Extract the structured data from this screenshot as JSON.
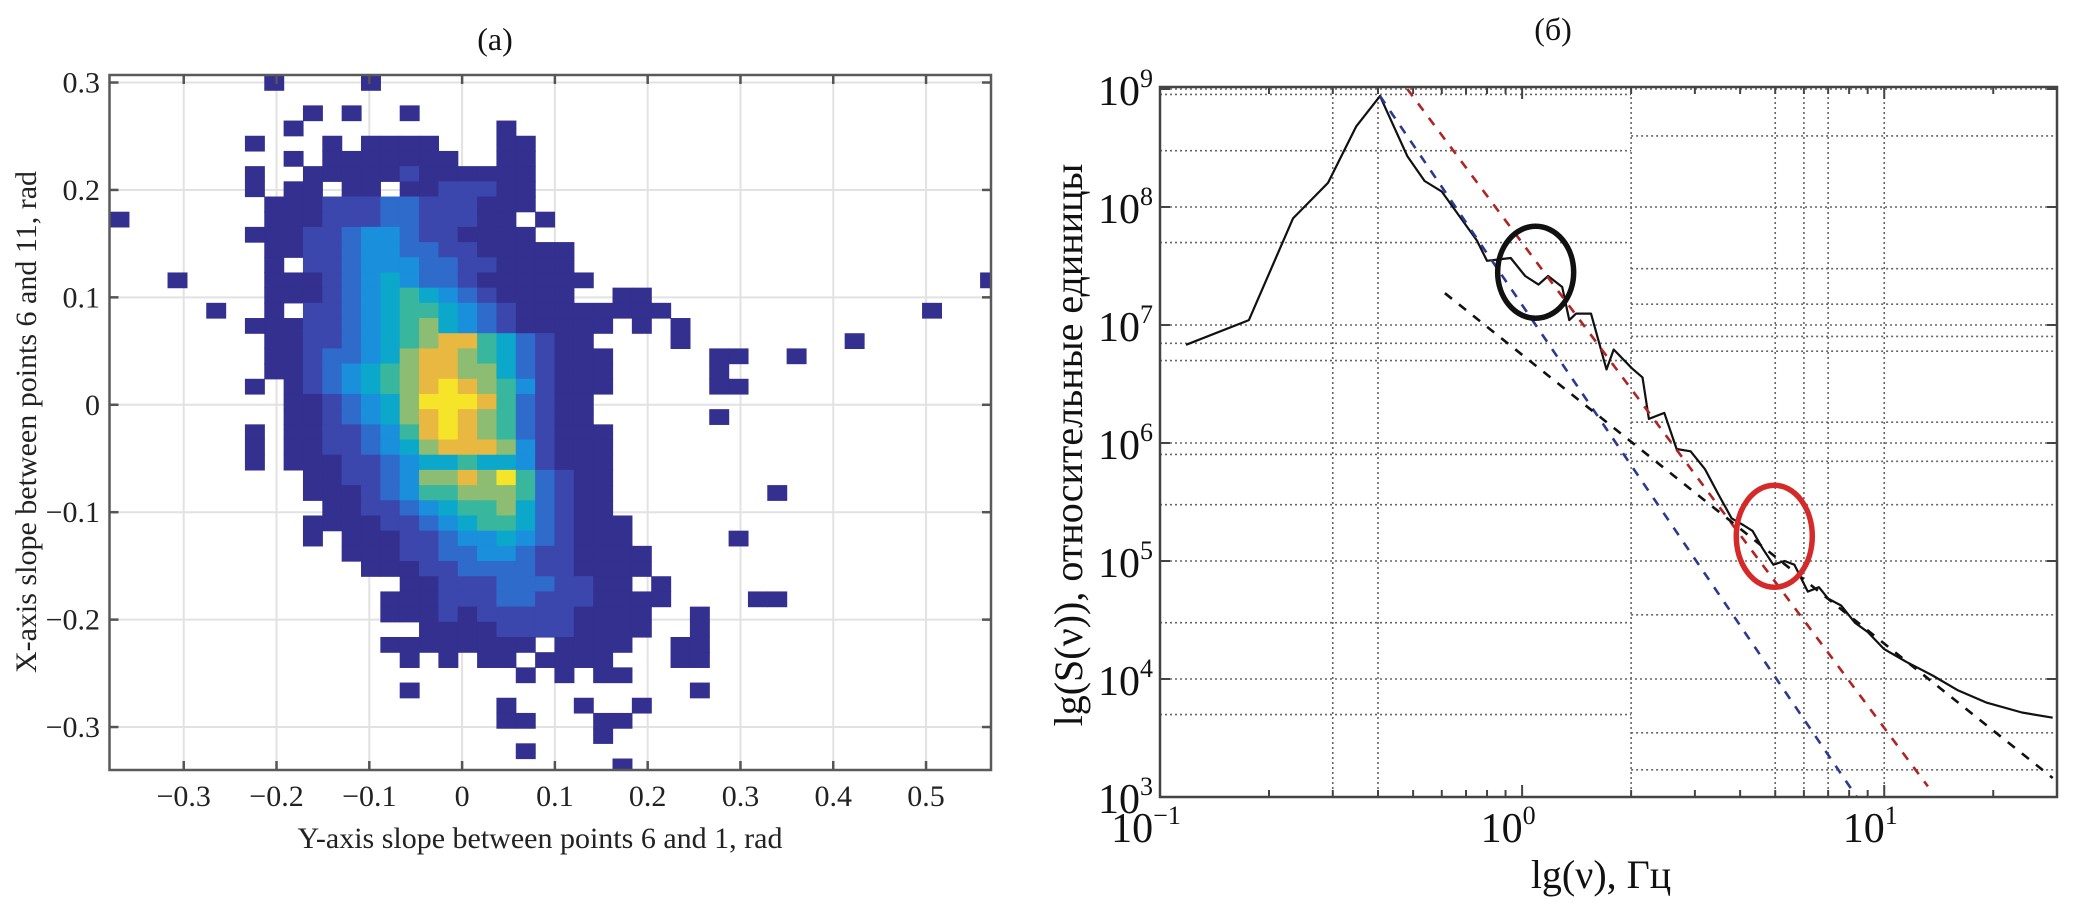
{
  "chart_data": [
    {
      "type": "heatmap",
      "panel_label": "(a)",
      "xlabel": "Y-axis slope between points 6 and 1, rad",
      "ylabel": "X-axis slope between points 6 and 11,  rad",
      "xlim": [
        -0.38,
        0.57
      ],
      "ylim": [
        -0.34,
        0.307
      ],
      "x_ticks": [
        -0.3,
        -0.2,
        -0.1,
        0,
        0.1,
        0.2,
        0.3,
        0.4,
        0.5
      ],
      "x_tick_labels": [
        "−0.3",
        "−0.2",
        "−0.1",
        "0",
        "0.1",
        "0.2",
        "0.3",
        "0.4",
        "0.5"
      ],
      "y_ticks": [
        0.3,
        0.2,
        0.1,
        0,
        -0.1,
        -0.2,
        -0.3
      ],
      "y_tick_labels": [
        "0.3",
        "0.2",
        "0.1",
        "0",
        "−0.1",
        "−0.2",
        "−0.3"
      ],
      "grid": true,
      "bins": {
        "x_start": -0.38,
        "x_width": 0.02085,
        "y_start": 0.307,
        "y_height": 0.01414
      },
      "colormap": [
        "#ffffff",
        "#33308f",
        "#3b47ad",
        "#2e6bca",
        "#1a8fdc",
        "#0ca8cc",
        "#38b79e",
        "#8cbd72",
        "#e8b840",
        "#f6e428"
      ],
      "density_levels_rows": [
        "00000000100001",
        "",
        "0000000000101001",
        "000000000100000000001",
        "0000000100010111100011",
        "0000000001011111110011",
        "0000000100111112111111",
        "0000000101101101122211",
        "0000000011122233222111",
        "10000000111222332221101",
        "0000000111223443221111",
        "000000001122344332211111",
        "000000001022344433221111",
        "0001000011123454332111111000000000000000000001",
        "0000000011123456543211110011",
        "0000010010223456654321111111100000000000001",
        "000000011122345675432111110101",
        "000000001122345678865321100001000000001",
        "0000000011233457887653211100000110 1",
        "00000000112345678877532111000001",
        "000000010123456789876421110000011",
        "0000000001123457999863211",
        "00000000011234578987632110000001",
        "00000001011223468987632111",
        "00000001011223457888742111",
        "00000001011122345565542111",
        "00000000001122347787963211",
        "00000000001112346677763211000000001",
        "00000000000112234566753211",
        "000000000011112234566532111",
        "000000000010111223445432111000001",
        "0000000000001112233443221111",
        "0000000000000111223333221111",
        "00000000000000011222333221101",
        "00000000000000111222332221111000011",
        "0000000000000011121222221111 01",
        "0000000000000000111122221111001",
        "0000000000000011111111011110011",
        "0000000000000001010110111100011",
        "000000000000000000000101011",
        "00000000000000010000000000000 1",
        "00000000000000000000100010 1",
        "000000000000000000001100 11",
        "00000000000000000000000001",
        "0000000000000000000001",
        "000000000000000000000000001"
      ]
    },
    {
      "type": "line",
      "panel_label": "(б)",
      "xlabel": "lg(ν), Гц",
      "ylabel": "lg(S(ν)), относительные единицы",
      "x_scale": "log",
      "y_scale": "log",
      "xlim": [
        0.1,
        30
      ],
      "ylim": [
        1000,
        1000000000
      ],
      "x_tick_labels": [
        {
          "base": "10",
          "exp": "−1",
          "value": 0.1
        },
        {
          "base": "10",
          "exp": "0",
          "value": 1
        },
        {
          "base": "10",
          "exp": "1",
          "value": 10
        }
      ],
      "y_tick_labels": [
        {
          "base": "10",
          "exp": "3",
          "value": 1000
        },
        {
          "base": "10",
          "exp": "4",
          "value": 10000
        },
        {
          "base": "10",
          "exp": "5",
          "value": 100000
        },
        {
          "base": "10",
          "exp": "6",
          "value": 1000000
        },
        {
          "base": "10",
          "exp": "7",
          "value": 10000000
        },
        {
          "base": "10",
          "exp": "8",
          "value": 100000000
        },
        {
          "base": "10",
          "exp": "9",
          "value": 1000000000
        }
      ],
      "grid": true,
      "grid_x_values": [
        0.3,
        0.4,
        2,
        5,
        6,
        7,
        10
      ],
      "grid_y_left_values": [
        900000000,
        300000000,
        50000000,
        7000000,
        5000000,
        800000,
        300000,
        30000,
        5000
      ],
      "grid_y_right_values": [
        400000000,
        30000000,
        15000000,
        8000000,
        6000000,
        1500000,
        700000,
        300000,
        35000,
        3500,
        1700
      ],
      "series": [
        {
          "style": "solid",
          "color": "#111111",
          "x": [
            0.118,
            0.176,
            0.233,
            0.291,
            0.348,
            0.405,
            0.482,
            0.538,
            0.6,
            0.75,
            0.8,
            0.93,
            1.02,
            1.11,
            1.18,
            1.29,
            1.35,
            1.41,
            1.55,
            1.71,
            1.79,
            2.01,
            2.15,
            2.24,
            2.47,
            2.67,
            2.92,
            3.2,
            3.48,
            3.79,
            4.1,
            4.33,
            4.6,
            4.94,
            5.3,
            5.65,
            6.15,
            6.6,
            7.0,
            7.6,
            8.3,
            9.0,
            9.98,
            11.5,
            13.6,
            16,
            19.2,
            24,
            29.2
          ],
          "y": [
            6800000,
            11000000,
            80000000,
            160000000,
            480000000,
            870000000,
            270000000,
            166000000,
            135000000,
            52000000,
            35000000,
            37000000,
            26000000,
            22000000,
            26000000,
            21000000,
            11000000,
            12500000,
            12500000,
            4200000,
            6200000,
            4300000,
            3600000,
            1600000,
            1800000,
            890000,
            850000,
            600000,
            370000,
            230000,
            200000,
            180000,
            130000,
            93000,
            100000,
            93000,
            55000,
            60000,
            48000,
            42000,
            30000,
            25000,
            18000,
            14000,
            10700,
            8000,
            6300,
            5200,
            4700
          ]
        },
        {
          "style": "dashed",
          "color": "#2b3a8f",
          "x": [
            0.405,
            8.4
          ],
          "y": [
            870000000,
            1000
          ]
        },
        {
          "style": "dashed",
          "color": "#b02424",
          "x": [
            0.482,
            13.2
          ],
          "y": [
            1000000000,
            1230
          ]
        },
        {
          "style": "dashed",
          "color": "#111111",
          "x": [
            0.612,
            29.2
          ],
          "y": [
            18600000,
            1450
          ]
        }
      ],
      "annotations": [
        {
          "shape": "ellipse",
          "color": "#111111",
          "center_x": 1.09,
          "center_y": 28000000
        },
        {
          "shape": "ellipse",
          "color": "#d42a2a",
          "center_x": 4.97,
          "center_y": 162000
        }
      ]
    }
  ]
}
